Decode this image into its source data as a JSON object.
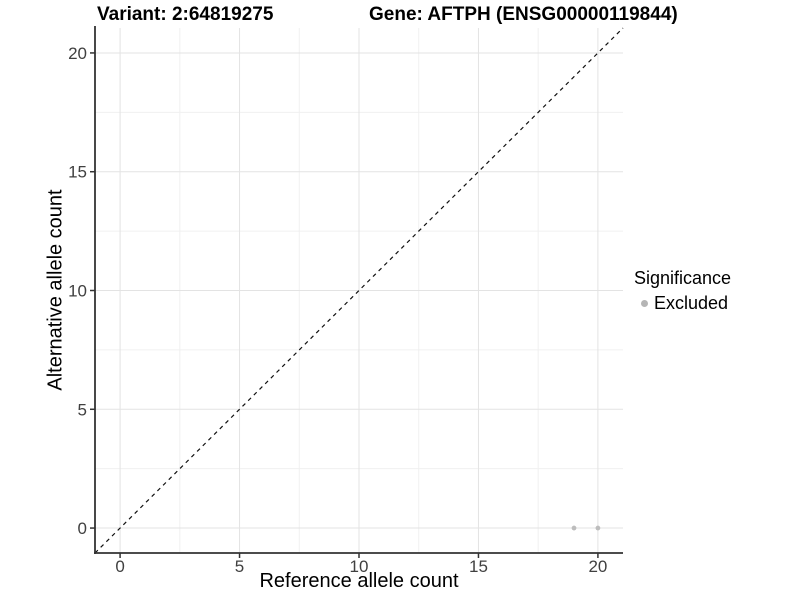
{
  "header": {
    "variant_title": "Variant: 2:64819275",
    "gene_title": "Gene: AFTPH (ENSG00000119844)"
  },
  "legend": {
    "title": "Significance",
    "position": "right",
    "items": [
      {
        "label": "Excluded",
        "color": "#b5b5b5",
        "marker": "circle"
      }
    ]
  },
  "colors": {
    "background": "#ffffff",
    "axis_line": "#333333",
    "tick_mark": "#333333",
    "tick_label": "#404040",
    "grid_major": "#e3e3e3",
    "grid_minor": "#f0f0f0",
    "identity_line": "#111111",
    "point": "#bdbdbd"
  },
  "chart_data": {
    "type": "scatter",
    "title": "",
    "xlabel": "Reference allele count",
    "ylabel": "Alternative allele count",
    "xlim": [
      -1.05,
      21.05
    ],
    "ylim": [
      -1.05,
      21.05
    ],
    "x_ticks": [
      0,
      5,
      10,
      15,
      20
    ],
    "y_ticks": [
      0,
      5,
      10,
      15,
      20
    ],
    "x_minor_ticks": [
      2.5,
      7.5,
      12.5,
      17.5
    ],
    "y_minor_ticks": [
      2.5,
      7.5,
      12.5,
      17.5
    ],
    "grid": true,
    "legend_position": "right",
    "series": [
      {
        "name": "Excluded",
        "color": "#bdbdbd",
        "marker": "circle",
        "points": [
          {
            "x": 19,
            "y": 0
          },
          {
            "x": 20,
            "y": 0
          }
        ]
      }
    ],
    "reference_line": {
      "kind": "identity",
      "equation": "y = x",
      "style": "dashed",
      "color": "#111111"
    }
  }
}
